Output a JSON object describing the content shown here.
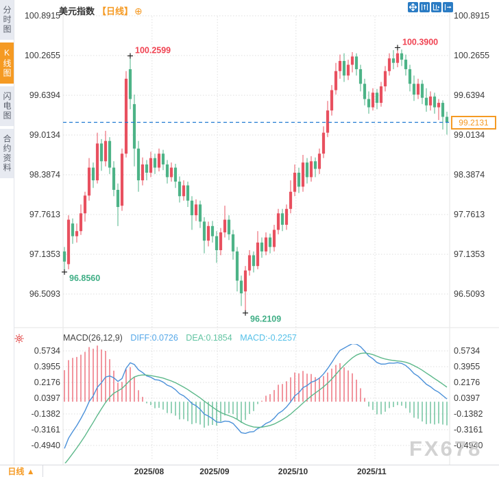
{
  "app": {
    "sidebar": {
      "items": [
        {
          "label": "分时图",
          "active": false
        },
        {
          "label": "K线图",
          "active": true
        },
        {
          "label": "闪电图",
          "active": false
        },
        {
          "label": "合约资料",
          "active": false
        }
      ]
    },
    "header": {
      "symbol": "美元指数",
      "period_tag": "【日线】",
      "add_icon": "⊕"
    },
    "toolbar": {
      "buttons": [
        "move-tool",
        "zoom-in",
        "zoom-out",
        "pan-right"
      ]
    },
    "bottom_bar": {
      "period": "日线",
      "arrow": "▲"
    },
    "watermark": "FX678"
  },
  "chart_data": {
    "type": "candlestick_with_macd",
    "title": "美元指数",
    "period": "日线",
    "y_ticks": [
      "100.8915",
      "100.2655",
      "99.6394",
      "99.0134",
      "98.3874",
      "97.7613",
      "97.1353",
      "96.5093"
    ],
    "x_labels": [
      {
        "text": "2025/08",
        "i": 21.3
      },
      {
        "text": "2025/09",
        "i": 37.2
      },
      {
        "text": "2025/10",
        "i": 56.3
      },
      {
        "text": "2025/11",
        "i": 75.5
      }
    ],
    "current_price": "99.2131",
    "annotations": [
      {
        "text": "100.2599",
        "i": 16,
        "type": "high"
      },
      {
        "text": "100.3900",
        "i": 81,
        "type": "high"
      },
      {
        "text": "96.8560",
        "i": 0,
        "type": "low"
      },
      {
        "text": "96.2109",
        "i": 44,
        "type": "low"
      }
    ],
    "candles": [
      [
        97.18,
        97.25,
        96.856,
        97.02
      ],
      [
        96.98,
        97.75,
        96.9,
        97.68
      ],
      [
        97.62,
        97.7,
        97.3,
        97.42
      ],
      [
        97.42,
        97.62,
        97.32,
        97.5
      ],
      [
        97.5,
        97.92,
        97.44,
        97.78
      ],
      [
        97.78,
        98.12,
        97.65,
        98.06
      ],
      [
        98.06,
        98.65,
        97.98,
        98.5
      ],
      [
        98.5,
        98.58,
        98.18,
        98.3
      ],
      [
        98.3,
        99.05,
        98.25,
        98.88
      ],
      [
        98.88,
        98.95,
        98.45,
        98.6
      ],
      [
        98.6,
        99.08,
        98.52,
        98.92
      ],
      [
        98.92,
        98.98,
        98.4,
        98.5
      ],
      [
        98.5,
        98.6,
        98.05,
        98.15
      ],
      [
        98.15,
        98.25,
        97.58,
        97.88
      ],
      [
        97.9,
        98.8,
        97.82,
        98.72
      ],
      [
        98.72,
        100.02,
        98.66,
        99.9
      ],
      [
        100.05,
        100.2599,
        99.42,
        99.58
      ],
      [
        99.5,
        99.65,
        98.52,
        98.8
      ],
      [
        98.8,
        98.92,
        98.12,
        98.3
      ],
      [
        98.3,
        98.66,
        98.22,
        98.55
      ],
      [
        98.55,
        98.62,
        98.3,
        98.42
      ],
      [
        98.42,
        98.75,
        98.35,
        98.65
      ],
      [
        98.65,
        98.72,
        98.4,
        98.5
      ],
      [
        98.5,
        98.8,
        98.44,
        98.72
      ],
      [
        98.72,
        98.78,
        98.46,
        98.55
      ],
      [
        98.55,
        98.62,
        98.25,
        98.35
      ],
      [
        98.35,
        98.58,
        98.28,
        98.5
      ],
      [
        98.5,
        98.56,
        98.18,
        98.28
      ],
      [
        98.28,
        98.36,
        97.95,
        98.05
      ],
      [
        98.05,
        98.3,
        97.98,
        98.22
      ],
      [
        98.22,
        98.28,
        97.88,
        97.98
      ],
      [
        97.98,
        98.05,
        97.52,
        97.75
      ],
      [
        97.75,
        98.0,
        97.66,
        97.92
      ],
      [
        97.92,
        97.98,
        97.55,
        97.65
      ],
      [
        97.65,
        97.72,
        97.15,
        97.35
      ],
      [
        97.35,
        97.65,
        97.26,
        97.58
      ],
      [
        97.58,
        97.66,
        97.32,
        97.42
      ],
      [
        97.42,
        97.5,
        97.0,
        97.2
      ],
      [
        97.2,
        97.55,
        97.12,
        97.48
      ],
      [
        97.48,
        97.9,
        97.4,
        97.68
      ],
      [
        97.68,
        97.75,
        97.36,
        97.45
      ],
      [
        97.45,
        97.52,
        97.05,
        97.18
      ],
      [
        97.18,
        97.25,
        96.55,
        96.72
      ],
      [
        96.72,
        96.8,
        96.32,
        96.52
      ],
      [
        96.55,
        96.95,
        96.2109,
        96.88
      ],
      [
        96.88,
        97.2,
        96.8,
        97.12
      ],
      [
        97.12,
        97.18,
        96.85,
        96.95
      ],
      [
        96.95,
        97.5,
        96.9,
        97.32
      ],
      [
        97.32,
        97.4,
        97.08,
        97.18
      ],
      [
        97.18,
        97.48,
        97.12,
        97.4
      ],
      [
        97.4,
        97.46,
        97.15,
        97.25
      ],
      [
        97.25,
        97.6,
        97.18,
        97.52
      ],
      [
        97.52,
        97.85,
        97.45,
        97.78
      ],
      [
        97.78,
        97.85,
        97.5,
        97.6
      ],
      [
        97.6,
        97.92,
        97.52,
        97.85
      ],
      [
        97.85,
        98.3,
        97.78,
        98.12
      ],
      [
        98.12,
        98.55,
        98.05,
        98.42
      ],
      [
        98.42,
        98.5,
        98.1,
        98.2
      ],
      [
        98.2,
        98.7,
        98.12,
        98.58
      ],
      [
        98.58,
        98.65,
        98.25,
        98.35
      ],
      [
        98.35,
        98.68,
        98.28,
        98.6
      ],
      [
        98.6,
        98.66,
        98.35,
        98.48
      ],
      [
        98.48,
        98.8,
        98.4,
        98.72
      ],
      [
        98.72,
        99.15,
        98.65,
        99.05
      ],
      [
        99.05,
        99.55,
        98.98,
        99.4
      ],
      [
        99.4,
        99.8,
        99.32,
        99.72
      ],
      [
        99.72,
        100.15,
        99.65,
        100.02
      ],
      [
        100.02,
        100.28,
        99.9,
        100.18
      ],
      [
        100.18,
        100.3,
        99.85,
        99.95
      ],
      [
        99.95,
        100.2,
        99.88,
        100.12
      ],
      [
        100.12,
        100.32,
        100.0,
        100.25
      ],
      [
        100.25,
        100.3,
        99.95,
        100.05
      ],
      [
        100.05,
        100.12,
        99.7,
        99.82
      ],
      [
        99.82,
        99.9,
        99.48,
        99.58
      ],
      [
        99.58,
        99.7,
        99.35,
        99.45
      ],
      [
        99.45,
        99.75,
        99.4,
        99.68
      ],
      [
        99.68,
        99.74,
        99.42,
        99.52
      ],
      [
        99.52,
        99.85,
        99.46,
        99.78
      ],
      [
        99.78,
        100.1,
        99.7,
        100.02
      ],
      [
        100.02,
        100.3,
        99.95,
        100.22
      ],
      [
        100.22,
        100.35,
        100.05,
        100.15
      ],
      [
        100.15,
        100.39,
        100.08,
        100.3
      ],
      [
        100.3,
        100.36,
        100.1,
        100.2
      ],
      [
        100.2,
        100.28,
        99.95,
        100.05
      ],
      [
        100.05,
        100.12,
        99.7,
        99.82
      ],
      [
        99.82,
        99.95,
        99.55,
        99.65
      ],
      [
        99.65,
        99.9,
        99.58,
        99.82
      ],
      [
        99.82,
        99.88,
        99.5,
        99.6
      ],
      [
        99.6,
        99.75,
        99.38,
        99.48
      ],
      [
        99.48,
        99.7,
        99.4,
        99.62
      ],
      [
        99.62,
        99.68,
        99.35,
        99.45
      ],
      [
        99.45,
        99.58,
        99.25,
        99.52
      ],
      [
        99.52,
        99.56,
        99.1,
        99.3
      ],
      [
        99.3,
        99.38,
        99.02,
        99.2131
      ]
    ],
    "macd": {
      "name": "MACD(26,12,9)",
      "diff": "DIFF:0.0726",
      "dea": "DEA:0.1854",
      "macd": "MACD:-0.2257",
      "y_ticks": [
        "0.5734",
        "0.3955",
        "0.2176",
        "0.0397",
        "-0.1382",
        "-0.3161",
        "-0.4940"
      ]
    }
  },
  "colors": {
    "up": "#e8505f",
    "down": "#4db387",
    "diff_line": "#4a90d9",
    "dea_line": "#5cb88a",
    "dashed_blue": "#1f78d1",
    "ann_high": "#f04352",
    "ann_low": "#3fae85",
    "accent": "#f59a23",
    "grid": "#dedede",
    "axis_text": "#3a3a3a"
  }
}
